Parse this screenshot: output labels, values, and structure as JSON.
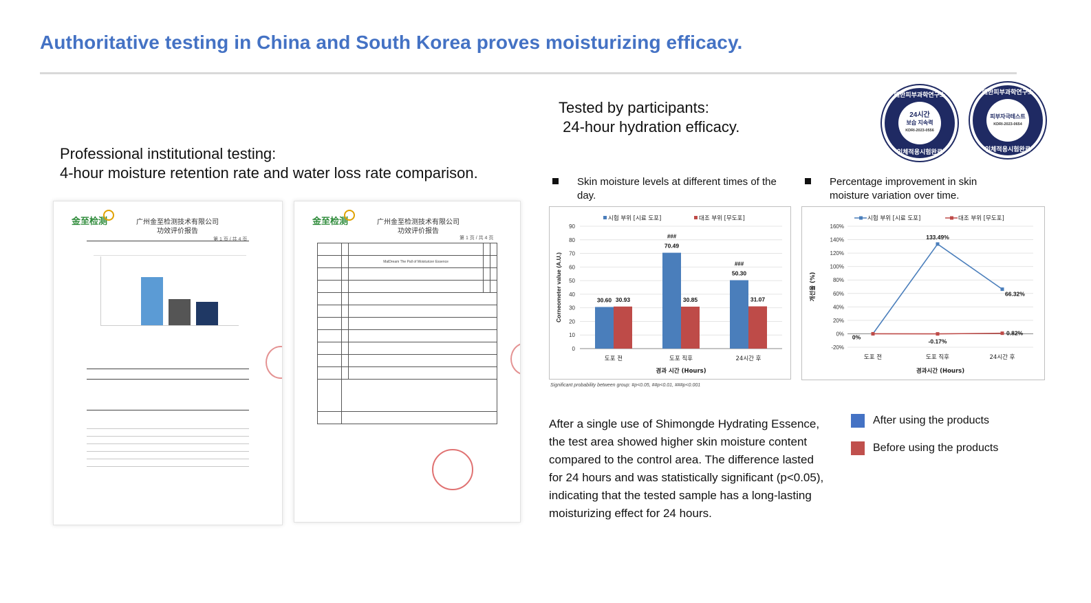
{
  "page": {
    "title": "Authoritative testing in China and South Korea proves moisturizing efficacy.",
    "left_caption_line1": "Professional institutional testing:",
    "left_caption_line2": "4-hour moisture retention rate and water loss rate comparison.",
    "mid_caption_line1": "Tested by participants:",
    "mid_caption_line2": " 24-hour hydration efficacy."
  },
  "documents": {
    "doc1": {
      "logo": "金至检测",
      "company": "广州金至检测技术有限公司",
      "report": "功效评价报告",
      "page_no": "第 1 页 / 共 4 页"
    },
    "doc2": {
      "logo": "金至检测",
      "company": "广州金至检测技术有限公司",
      "report": "功效评价报告",
      "page_no": "第 1 页 / 共 4 页",
      "product_name": "MalDream The Pall of Moisturizer Essence"
    }
  },
  "seals": {
    "seal1": {
      "ring_top": "대한피부과학연구소",
      "ring_bottom": "인체적용시험완료",
      "line1": "24시간",
      "line2": "보습 지속력",
      "code": "KDRI-2023-0556"
    },
    "seal2": {
      "ring_top": "대한피부과학연구소",
      "ring_bottom": "인체적용시험완료",
      "line1": "피부자극테스트",
      "code": "KDRI-2023-0654"
    }
  },
  "charts_section": {
    "chart1_title": "Skin moisture levels at different times of the day.",
    "chart2_title": "Percentage improvement in skin moisture variation over time.",
    "significance_note": "Significant probability between group: #p<0.05, ##p<0.01, ###p<0.001",
    "description": "After a single use of Shimongde Hydrating Essence, the test area showed higher skin moisture content compared to the control area. The difference lasted for 24 hours and was statistically significant (p<0.05), indicating that the tested sample has a long-lasting moisturizing effect for 24 hours.",
    "legend": [
      {
        "label": "After using the products",
        "color": "#4472c4"
      },
      {
        "label": "Before using the products",
        "color": "#c0504d"
      }
    ]
  },
  "chart_data": [
    {
      "type": "bar",
      "categories": [
        "도포 전",
        "도포 직후",
        "24시간 후"
      ],
      "series": [
        {
          "name": "시험 부위 [시료 도포]",
          "values": [
            30.6,
            70.49,
            50.3
          ],
          "color": "#4a7ebb"
        },
        {
          "name": "대조 부위 [무도포]",
          "values": [
            30.93,
            30.85,
            31.07
          ],
          "color": "#be4b48"
        }
      ],
      "annotations": [
        "",
        "###",
        "###"
      ],
      "xlabel": "경과 시간 (Hours)",
      "ylabel": "Corneometer value (A.U.)",
      "ylim": [
        0,
        90
      ],
      "yticks": [
        0,
        10,
        20,
        30,
        40,
        50,
        60,
        70,
        80,
        90
      ],
      "legend": "top",
      "grid": true
    },
    {
      "type": "line",
      "categories": [
        "도포 전",
        "도포 직후",
        "24시간 후"
      ],
      "series": [
        {
          "name": "시험 부위 [시료 도포]",
          "values": [
            0,
            133.49,
            66.32
          ],
          "labels": [
            "0%",
            "133.49%",
            "66.32%"
          ],
          "color": "#4a7ebb"
        },
        {
          "name": "대조 부위 [무도포]",
          "values": [
            0,
            -0.17,
            0.82
          ],
          "labels": [
            "",
            "-0.17%",
            "0.82%"
          ],
          "color": "#be4b48"
        }
      ],
      "xlabel": "경과시간 (Hours)",
      "ylabel": "개선율 (%)",
      "ylim": [
        -20,
        160
      ],
      "yticks": [
        "-20%",
        "0%",
        "20%",
        "40%",
        "60%",
        "80%",
        "100%",
        "120%",
        "140%",
        "160%"
      ],
      "legend": "top",
      "grid": true
    }
  ]
}
